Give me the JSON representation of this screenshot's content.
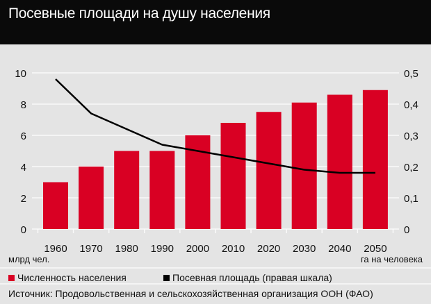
{
  "title": "Посевные площади на душу населения",
  "chart_data": {
    "type": "bar",
    "categories": [
      "1960",
      "1970",
      "1980",
      "1990",
      "2000",
      "2010",
      "2020",
      "2030",
      "2040",
      "2050"
    ],
    "series": [
      {
        "name": "Численность населения",
        "type": "bar",
        "axis": "left",
        "color": "#d90023",
        "values": [
          3,
          4,
          5,
          5,
          6,
          6.8,
          7.5,
          8.1,
          8.6,
          8.9
        ]
      },
      {
        "name": "Посевная площадь (правая шкала)",
        "type": "line",
        "axis": "right",
        "color": "#000000",
        "values": [
          0.48,
          0.37,
          0.32,
          0.27,
          0.25,
          0.23,
          0.21,
          0.19,
          0.18,
          0.18
        ]
      }
    ],
    "ylim": [
      0,
      10
    ],
    "y2lim": [
      0,
      0.5
    ],
    "yticks": [
      "0",
      "2",
      "4",
      "6",
      "8",
      "10"
    ],
    "y2ticks": [
      "0",
      "0,1",
      "0,2",
      "0,3",
      "0,4",
      "0,5"
    ],
    "ylabel": "млрд чел.",
    "y2label": "га на человека",
    "grid": true,
    "legend_position": "bottom"
  },
  "source": "Источник: Продовольственная и сельскохозяйственная организация ООН (ФАО)"
}
